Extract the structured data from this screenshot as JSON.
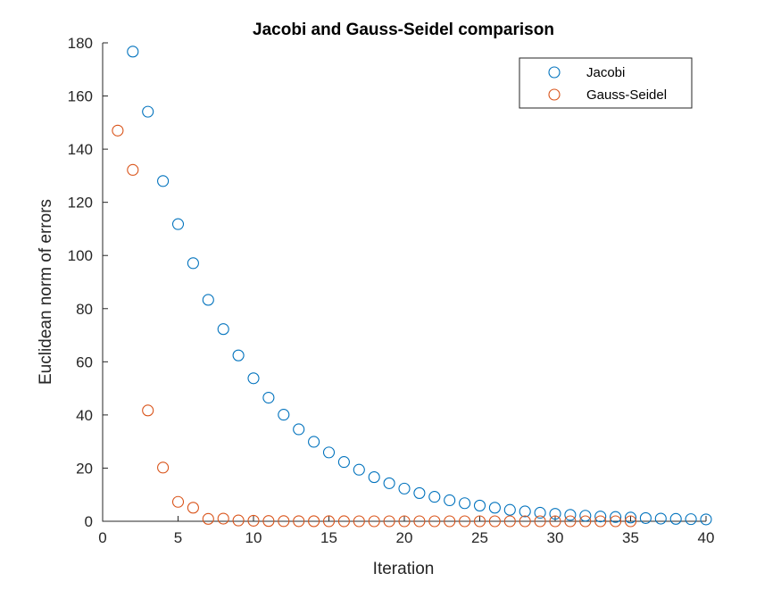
{
  "chart_data": {
    "type": "scatter",
    "title": "Jacobi and Gauss-Seidel comparison",
    "xlabel": "Iteration",
    "ylabel": "Euclidean norm of errors",
    "xlim": [
      0,
      40
    ],
    "ylim": [
      0,
      180
    ],
    "xticks": [
      0,
      5,
      10,
      15,
      20,
      25,
      30,
      35,
      40
    ],
    "yticks": [
      0,
      20,
      40,
      60,
      80,
      100,
      120,
      140,
      160,
      180
    ],
    "grid": false,
    "legend_position": "top-right",
    "marker": "open-circle",
    "series": [
      {
        "name": "Jacobi",
        "color": "#0072BD",
        "x": [
          2,
          3,
          4,
          5,
          6,
          7,
          8,
          9,
          10,
          11,
          12,
          13,
          14,
          15,
          16,
          17,
          18,
          19,
          20,
          21,
          22,
          23,
          24,
          25,
          26,
          27,
          28,
          29,
          30,
          31,
          32,
          33,
          34,
          35,
          36,
          37,
          38,
          39,
          40
        ],
        "y": [
          176.7,
          154.1,
          128.0,
          111.8,
          97.1,
          83.3,
          72.3,
          62.4,
          53.8,
          46.5,
          40.1,
          34.6,
          29.9,
          25.9,
          22.3,
          19.4,
          16.6,
          14.3,
          12.3,
          10.6,
          9.2,
          7.9,
          6.8,
          5.9,
          5.1,
          4.3,
          3.7,
          3.2,
          2.8,
          2.4,
          2.1,
          1.8,
          1.6,
          1.4,
          1.2,
          1.0,
          0.9,
          0.8,
          0.7
        ]
      },
      {
        "name": "Gauss-Seidel",
        "color": "#D95319",
        "x": [
          1,
          2,
          3,
          4,
          5,
          6,
          7,
          8,
          9,
          10,
          11,
          12,
          13,
          14,
          15,
          16,
          17,
          18,
          19,
          20,
          21,
          22,
          23,
          24,
          25,
          26,
          27,
          28,
          29,
          30,
          31,
          32,
          33,
          34,
          35
        ],
        "y": [
          147.0,
          132.2,
          41.7,
          20.2,
          7.3,
          5.1,
          0.9,
          1.0,
          0.3,
          0.2,
          0.1,
          0.05,
          0.03,
          0.02,
          0.01,
          0.01,
          0.0,
          0.0,
          0.0,
          0.0,
          0.0,
          0.0,
          0.0,
          0.0,
          0.0,
          0.0,
          0.0,
          0.0,
          0.0,
          0.0,
          0.0,
          0.0,
          0.0,
          0.0,
          0.0
        ]
      }
    ]
  }
}
